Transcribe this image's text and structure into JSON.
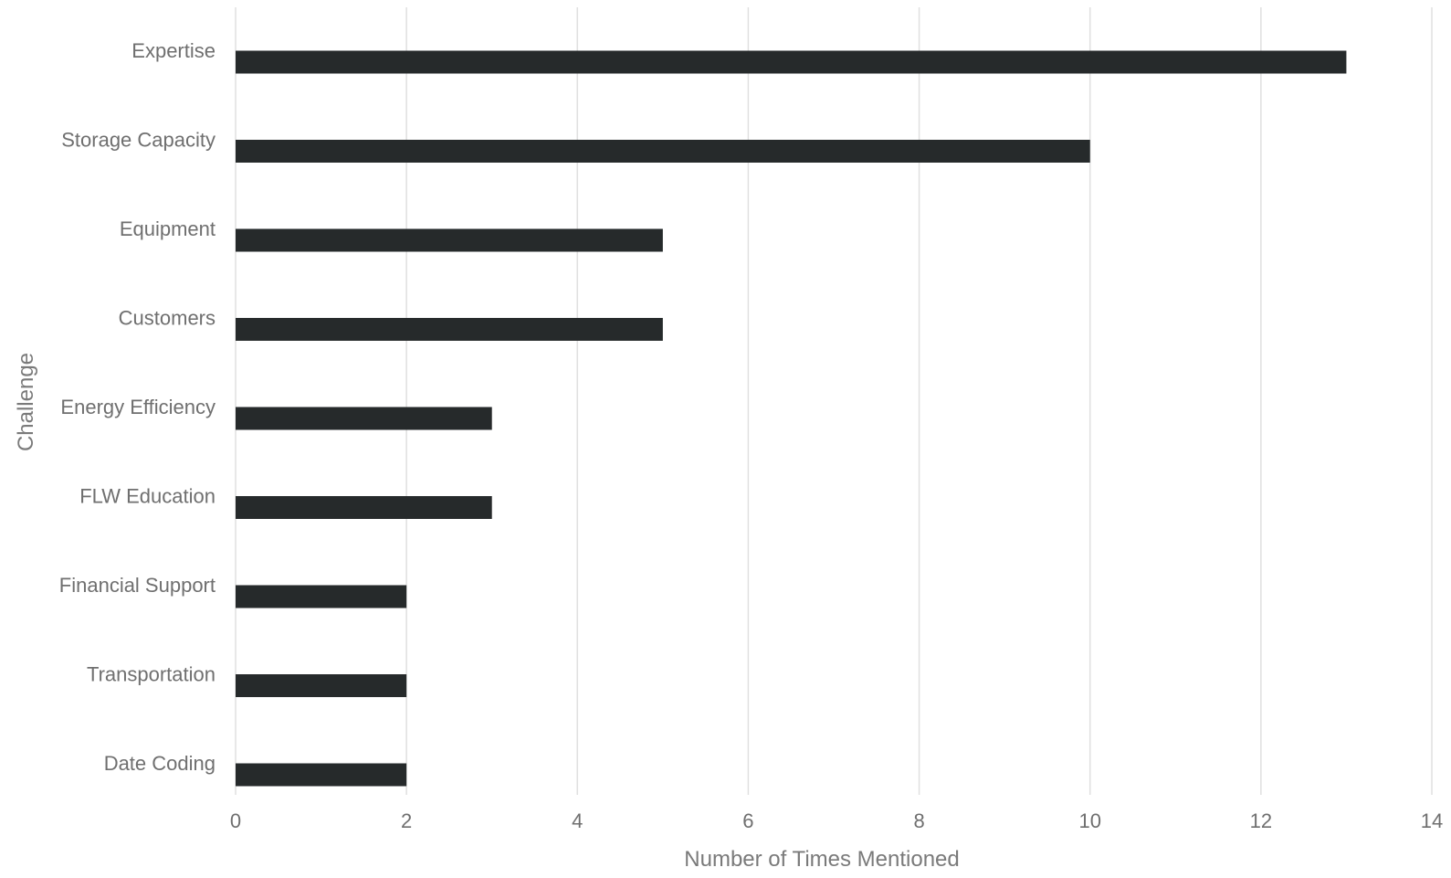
{
  "chart_data": {
    "type": "bar",
    "orientation": "horizontal",
    "categories": [
      "Expertise",
      "Storage Capacity",
      "Equipment",
      "Customers",
      "Energy Efficiency",
      "FLW Education",
      "Financial Support",
      "Transportation",
      "Date Coding"
    ],
    "values": [
      13,
      10,
      5,
      5,
      3,
      3,
      2,
      2,
      2
    ],
    "xlabel": "Number of Times Mentioned",
    "ylabel": "Challenge",
    "xlim": [
      0,
      14
    ],
    "xticks": [
      "0",
      "2",
      "4",
      "6",
      "8",
      "10",
      "12",
      "14"
    ],
    "grid": true,
    "legend": "none",
    "colors": {
      "bar": "#262a2b",
      "grid": "#e0e0e0",
      "text": "#6f6f6f"
    }
  }
}
